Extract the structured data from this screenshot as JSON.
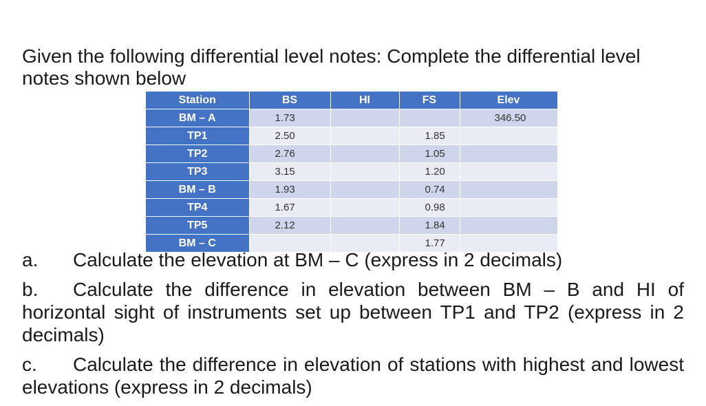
{
  "intro": "Given the following differential level notes: Complete the differential level notes shown below",
  "table": {
    "headers": [
      "Station",
      "BS",
      "HI",
      "FS",
      "Elev"
    ],
    "rows": [
      {
        "station": "BM – A",
        "bs": "1.73",
        "hi": "",
        "fs": "",
        "elev": "346.50"
      },
      {
        "station": "TP1",
        "bs": "2.50",
        "hi": "",
        "fs": "1.85",
        "elev": ""
      },
      {
        "station": "TP2",
        "bs": "2.76",
        "hi": "",
        "fs": "1.05",
        "elev": ""
      },
      {
        "station": "TP3",
        "bs": "3.15",
        "hi": "",
        "fs": "1.20",
        "elev": ""
      },
      {
        "station": "BM – B",
        "bs": "1.93",
        "hi": "",
        "fs": "0.74",
        "elev": ""
      },
      {
        "station": "TP4",
        "bs": "1.67",
        "hi": "",
        "fs": "0.98",
        "elev": ""
      },
      {
        "station": "TP5",
        "bs": "2.12",
        "hi": "",
        "fs": "1.84",
        "elev": ""
      },
      {
        "station": "BM – C",
        "bs": "",
        "hi": "",
        "fs": "1.77",
        "elev": ""
      }
    ]
  },
  "questions": {
    "a": {
      "letter": "a.",
      "text": "Calculate the elevation at BM – C (express in 2 decimals)"
    },
    "b": {
      "letter": "b.",
      "text": "Calculate the difference in elevation between BM – B and HI of horizontal sight of instruments set up between TP1 and TP2 (express in 2 decimals)"
    },
    "c": {
      "letter": "c.",
      "text": "Calculate the difference in elevation of stations with highest and lowest elevations (express in 2 decimals)"
    }
  }
}
